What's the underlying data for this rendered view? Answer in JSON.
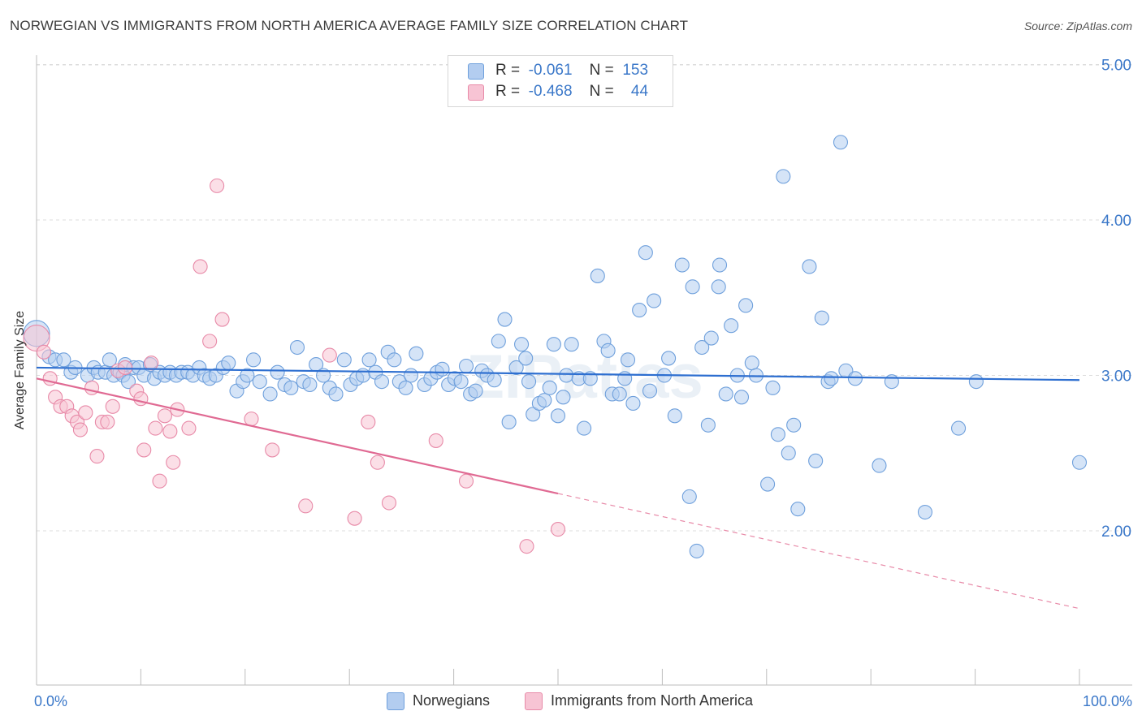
{
  "title": "NORWEGIAN VS IMMIGRANTS FROM NORTH AMERICA AVERAGE FAMILY SIZE CORRELATION CHART",
  "source": "Source: ZipAtlas.com",
  "watermark": "ZIPatlas",
  "legend": {
    "rows": [
      {
        "r_label": "R =",
        "r_value": "-0.061",
        "n_label": "N =",
        "n_value": "153"
      },
      {
        "r_label": "R =",
        "r_value": "-0.468",
        "n_label": "N =",
        "n_value": "44"
      }
    ]
  },
  "chart_data": {
    "type": "scatter",
    "title": "NORWEGIAN VS IMMIGRANTS FROM NORTH AMERICA AVERAGE FAMILY SIZE CORRELATION CHART",
    "xlabel": "",
    "ylabel": "Average Family Size",
    "xlim": [
      0,
      100
    ],
    "ylim": [
      1.0,
      5.1
    ],
    "x_tick_labels": [
      "0.0%",
      "100.0%"
    ],
    "y_ticks": [
      2.0,
      3.0,
      4.0,
      5.0
    ],
    "y_tick_labels": [
      "2.00",
      "3.00",
      "4.00",
      "5.00"
    ],
    "grid": "horizontal dashed",
    "legend_position": "top-center",
    "series": [
      {
        "name": "Norwegians",
        "color": "#6fa0dc",
        "fill": "#b3cdf0",
        "trend": {
          "x0": 0,
          "y0": 3.05,
          "x1": 100,
          "y1": 2.97
        },
        "points": [
          [
            0.0,
            3.27
          ],
          [
            1.2,
            3.12
          ],
          [
            1.8,
            3.1
          ],
          [
            2.6,
            3.1
          ],
          [
            3.3,
            3.02
          ],
          [
            3.7,
            3.05
          ],
          [
            4.9,
            3.0
          ],
          [
            5.5,
            3.05
          ],
          [
            5.9,
            3.02
          ],
          [
            6.6,
            3.02
          ],
          [
            7.0,
            3.1
          ],
          [
            7.4,
            3.0
          ],
          [
            8.0,
            3.02
          ],
          [
            8.3,
            3.0
          ],
          [
            8.5,
            3.07
          ],
          [
            8.8,
            2.96
          ],
          [
            9.3,
            3.05
          ],
          [
            9.8,
            3.05
          ],
          [
            10.3,
            3.0
          ],
          [
            10.9,
            3.07
          ],
          [
            11.3,
            2.98
          ],
          [
            11.8,
            3.02
          ],
          [
            12.3,
            3.0
          ],
          [
            12.8,
            3.02
          ],
          [
            13.4,
            3.0
          ],
          [
            13.9,
            3.02
          ],
          [
            14.5,
            3.02
          ],
          [
            15.0,
            3.0
          ],
          [
            15.6,
            3.05
          ],
          [
            16.1,
            3.0
          ],
          [
            16.6,
            2.98
          ],
          [
            17.2,
            3.0
          ],
          [
            17.9,
            3.05
          ],
          [
            18.4,
            3.08
          ],
          [
            19.2,
            2.9
          ],
          [
            19.8,
            2.96
          ],
          [
            20.2,
            3.0
          ],
          [
            20.8,
            3.1
          ],
          [
            21.4,
            2.96
          ],
          [
            22.4,
            2.88
          ],
          [
            23.1,
            3.02
          ],
          [
            23.8,
            2.94
          ],
          [
            24.4,
            2.92
          ],
          [
            25.0,
            3.18
          ],
          [
            25.6,
            2.96
          ],
          [
            26.2,
            2.94
          ],
          [
            26.8,
            3.07
          ],
          [
            27.5,
            3.0
          ],
          [
            28.1,
            2.92
          ],
          [
            28.7,
            2.88
          ],
          [
            29.5,
            3.1
          ],
          [
            30.1,
            2.94
          ],
          [
            30.7,
            2.98
          ],
          [
            31.3,
            3.0
          ],
          [
            31.9,
            3.1
          ],
          [
            32.5,
            3.02
          ],
          [
            33.1,
            2.96
          ],
          [
            33.7,
            3.15
          ],
          [
            34.3,
            3.1
          ],
          [
            34.8,
            2.96
          ],
          [
            35.4,
            2.92
          ],
          [
            35.9,
            3.0
          ],
          [
            36.4,
            3.14
          ],
          [
            37.2,
            2.94
          ],
          [
            37.8,
            2.98
          ],
          [
            38.4,
            3.02
          ],
          [
            38.9,
            3.04
          ],
          [
            39.5,
            2.94
          ],
          [
            40.1,
            2.98
          ],
          [
            40.7,
            2.96
          ],
          [
            41.2,
            3.06
          ],
          [
            41.6,
            2.88
          ],
          [
            42.1,
            2.9
          ],
          [
            42.7,
            3.03
          ],
          [
            43.2,
            3.0
          ],
          [
            43.9,
            2.97
          ],
          [
            44.3,
            3.22
          ],
          [
            44.9,
            3.36
          ],
          [
            45.3,
            2.7
          ],
          [
            46.0,
            3.05
          ],
          [
            46.5,
            3.2
          ],
          [
            46.9,
            3.11
          ],
          [
            47.2,
            2.96
          ],
          [
            47.6,
            2.75
          ],
          [
            48.2,
            2.82
          ],
          [
            48.7,
            2.84
          ],
          [
            49.2,
            2.92
          ],
          [
            49.6,
            3.2
          ],
          [
            50.0,
            2.74
          ],
          [
            50.5,
            2.86
          ],
          [
            50.8,
            3.0
          ],
          [
            51.3,
            3.2
          ],
          [
            52.0,
            2.98
          ],
          [
            52.5,
            2.66
          ],
          [
            53.1,
            2.98
          ],
          [
            53.8,
            3.64
          ],
          [
            54.4,
            3.22
          ],
          [
            54.8,
            3.16
          ],
          [
            55.2,
            2.88
          ],
          [
            55.9,
            2.88
          ],
          [
            56.4,
            2.98
          ],
          [
            56.7,
            3.1
          ],
          [
            57.2,
            2.82
          ],
          [
            57.8,
            3.42
          ],
          [
            58.4,
            3.79
          ],
          [
            58.8,
            2.9
          ],
          [
            59.2,
            3.48
          ],
          [
            60.2,
            3.0
          ],
          [
            60.6,
            3.11
          ],
          [
            61.2,
            2.74
          ],
          [
            61.9,
            3.71
          ],
          [
            62.6,
            2.22
          ],
          [
            62.9,
            3.57
          ],
          [
            63.3,
            1.87
          ],
          [
            63.8,
            3.18
          ],
          [
            64.4,
            2.68
          ],
          [
            64.7,
            3.24
          ],
          [
            65.4,
            3.57
          ],
          [
            65.5,
            3.71
          ],
          [
            66.1,
            2.88
          ],
          [
            66.6,
            3.32
          ],
          [
            67.2,
            3.0
          ],
          [
            67.6,
            2.86
          ],
          [
            68.0,
            3.45
          ],
          [
            68.6,
            3.08
          ],
          [
            69.0,
            3.0
          ],
          [
            70.1,
            2.3
          ],
          [
            70.6,
            2.92
          ],
          [
            71.1,
            2.62
          ],
          [
            71.6,
            4.28
          ],
          [
            72.1,
            2.5
          ],
          [
            72.6,
            2.68
          ],
          [
            73.0,
            2.14
          ],
          [
            74.1,
            3.7
          ],
          [
            74.7,
            2.45
          ],
          [
            75.3,
            3.37
          ],
          [
            75.9,
            2.96
          ],
          [
            76.2,
            2.98
          ],
          [
            77.1,
            4.5
          ],
          [
            77.6,
            3.03
          ],
          [
            78.5,
            2.98
          ],
          [
            80.8,
            2.42
          ],
          [
            82.0,
            2.96
          ],
          [
            85.2,
            2.12
          ],
          [
            88.4,
            2.66
          ],
          [
            90.1,
            2.96
          ],
          [
            100.0,
            2.44
          ]
        ]
      },
      {
        "name": "Immigrants from North America",
        "color": "#e88aa8",
        "fill": "#f7c4d4",
        "trend": {
          "x0": 0,
          "y0": 2.98,
          "x1": 50,
          "y1": 2.24
        },
        "trend_extension": {
          "x0": 50,
          "y0": 2.24,
          "x1": 100,
          "y1": 1.5
        },
        "points": [
          [
            0.0,
            3.24
          ],
          [
            0.7,
            3.15
          ],
          [
            1.3,
            2.98
          ],
          [
            1.8,
            2.86
          ],
          [
            2.3,
            2.8
          ],
          [
            2.9,
            2.8
          ],
          [
            3.4,
            2.74
          ],
          [
            3.9,
            2.7
          ],
          [
            4.2,
            2.65
          ],
          [
            4.7,
            2.76
          ],
          [
            5.3,
            2.92
          ],
          [
            5.8,
            2.48
          ],
          [
            6.3,
            2.7
          ],
          [
            6.8,
            2.7
          ],
          [
            7.3,
            2.8
          ],
          [
            7.8,
            3.03
          ],
          [
            8.5,
            3.05
          ],
          [
            9.6,
            2.9
          ],
          [
            10.0,
            2.85
          ],
          [
            10.3,
            2.52
          ],
          [
            11.0,
            3.08
          ],
          [
            11.4,
            2.66
          ],
          [
            11.8,
            2.32
          ],
          [
            12.3,
            2.74
          ],
          [
            12.8,
            2.64
          ],
          [
            13.1,
            2.44
          ],
          [
            13.5,
            2.78
          ],
          [
            14.6,
            2.66
          ],
          [
            15.7,
            3.7
          ],
          [
            16.6,
            3.22
          ],
          [
            17.3,
            4.22
          ],
          [
            17.8,
            3.36
          ],
          [
            20.6,
            2.72
          ],
          [
            22.6,
            2.52
          ],
          [
            25.8,
            2.16
          ],
          [
            28.1,
            3.13
          ],
          [
            30.5,
            2.08
          ],
          [
            31.8,
            2.7
          ],
          [
            32.7,
            2.44
          ],
          [
            33.8,
            2.18
          ],
          [
            38.3,
            2.58
          ],
          [
            41.2,
            2.32
          ],
          [
            47.0,
            1.9
          ],
          [
            50.0,
            2.01
          ]
        ]
      }
    ]
  }
}
